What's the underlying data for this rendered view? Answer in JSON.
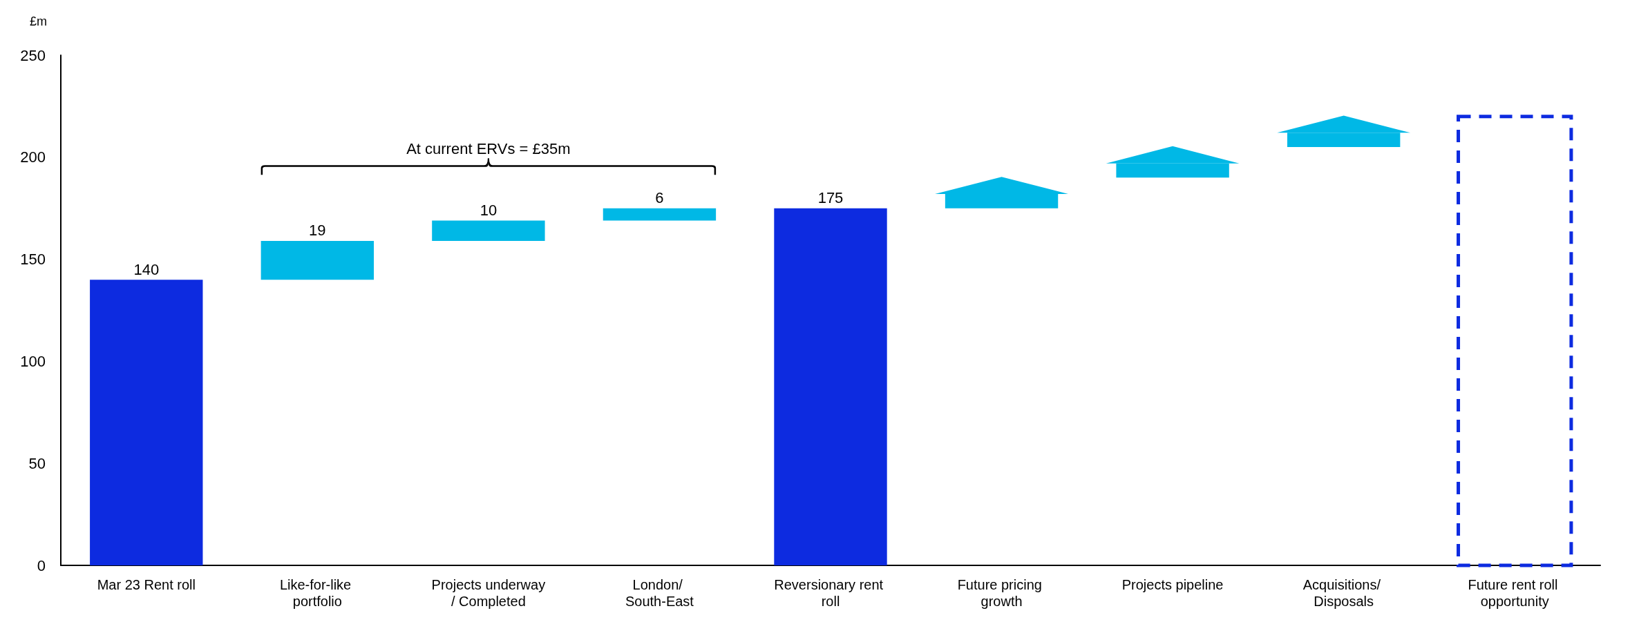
{
  "chart_data": {
    "type": "bar",
    "ylabel": "£m",
    "categories": [
      "Mar 23 Rent roll",
      "Like-for-like portfolio",
      "Projects underway/ Completed",
      "London/ South-East",
      "Reversionary rent roll",
      "Future pricing growth",
      "Projects pipeline",
      "Acquisitions/ Disposals",
      "Future rent roll opportunity"
    ],
    "series": [
      {
        "color": "#0d2be0",
        "values": [
          140,
          null,
          null,
          null,
          175,
          null,
          null,
          null,
          null
        ],
        "value_labels": [
          "140",
          null,
          null,
          null,
          "175",
          null,
          null,
          null,
          null
        ]
      },
      {
        "color": "#00b8e6",
        "values": [
          null,
          19,
          10,
          6,
          null,
          null,
          null,
          null,
          null
        ],
        "base": [
          null,
          140,
          159,
          169,
          null,
          null,
          null,
          null,
          null
        ],
        "value_labels": [
          null,
          "19",
          "10",
          "6",
          null,
          null,
          null,
          null,
          null
        ]
      },
      {
        "color": "#00b8e6",
        "marker": "triangle",
        "values": [
          null,
          null,
          null,
          null,
          null,
          7,
          7,
          7,
          null
        ],
        "base": [
          null,
          null,
          null,
          null,
          null,
          175,
          190,
          205,
          null
        ]
      },
      {
        "color": "#0d2be0",
        "line_style": "dashed",
        "values": [
          null,
          null,
          null,
          null,
          null,
          null,
          null,
          null,
          220
        ]
      }
    ],
    "ylim": [
      0,
      250
    ],
    "yticks": [
      0,
      50,
      100,
      150,
      200,
      250
    ],
    "grid": false,
    "annotations": [
      "At current ERVs = £35m"
    ]
  }
}
